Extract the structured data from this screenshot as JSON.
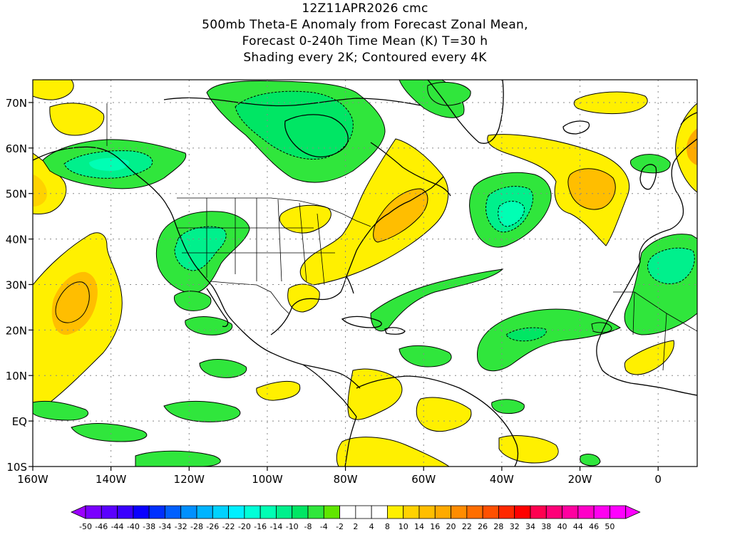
{
  "title": {
    "line1": "12Z11APR2026 cmc",
    "line2": "500mb Theta-E Anomaly from Forecast Zonal Mean,",
    "line3": "Forecast 0-240h Time Mean (K) T=30 h",
    "line4": "Shading every 2K; Contoured every 4K"
  },
  "map": {
    "lon_labels": [
      "160W",
      "140W",
      "120W",
      "100W",
      "80W",
      "60W",
      "40W",
      "20W",
      "0"
    ],
    "lat_labels": [
      "70N",
      "60N",
      "50N",
      "40N",
      "30N",
      "20N",
      "10N",
      "EQ",
      "10S"
    ],
    "lon_values": [
      -160,
      -140,
      -120,
      -100,
      -80,
      -60,
      -40,
      -20,
      0
    ],
    "lat_values": [
      70,
      60,
      50,
      40,
      30,
      20,
      10,
      0,
      -10
    ],
    "extent": {
      "lon_min": -160,
      "lon_max": 10,
      "lat_min": -10,
      "lat_max": 75
    },
    "gridlines": "dotted gray",
    "anomaly_regions": [
      {
        "id": "pac-warm-30n",
        "sign": "warm",
        "level": 8,
        "lon": -148,
        "lat": 25
      },
      {
        "id": "ne-pac-warm",
        "sign": "warm",
        "level": 6,
        "lon": -152,
        "lat": 52
      },
      {
        "id": "alaska-cold",
        "sign": "cold",
        "level": -10,
        "lon": -138,
        "lat": 60
      },
      {
        "id": "hudson-cold",
        "sign": "cold",
        "level": -8,
        "lon": -95,
        "lat": 67
      },
      {
        "id": "sw-us-cold",
        "sign": "cold",
        "level": -12,
        "lon": -115,
        "lat": 36
      },
      {
        "id": "east-us-warm",
        "sign": "warm",
        "level": 10,
        "lon": -70,
        "lat": 45
      },
      {
        "id": "atl-cold-45n",
        "sign": "cold",
        "level": -14,
        "lon": -40,
        "lat": 46
      },
      {
        "id": "ne-atl-warm",
        "sign": "warm",
        "level": 10,
        "lon": -16,
        "lat": 51
      },
      {
        "id": "africa-cold",
        "sign": "cold",
        "level": -12,
        "lon": -3,
        "lat": 32
      },
      {
        "id": "trop-atl-cold",
        "sign": "cold",
        "level": -6,
        "lon": -45,
        "lat": 22
      },
      {
        "id": "carib-warm",
        "sign": "warm",
        "level": 6,
        "lon": -65,
        "lat": 5
      }
    ]
  },
  "colorbar": {
    "labels": [
      "-50",
      "-46",
      "-44",
      "-40",
      "-38",
      "-34",
      "-32",
      "-28",
      "-26",
      "-22",
      "-20",
      "-16",
      "-14",
      "-10",
      "-8",
      "-4",
      "-2",
      "2",
      "4",
      "8",
      "10",
      "14",
      "16",
      "20",
      "22",
      "26",
      "28",
      "32",
      "34",
      "38",
      "40",
      "44",
      "46",
      "50"
    ],
    "colors": [
      "#9b00ff",
      "#7a00ff",
      "#5a00ff",
      "#3a00ff",
      "#0a00ff",
      "#0030ff",
      "#0060ff",
      "#0090ff",
      "#00b4ff",
      "#00d2ff",
      "#00f0ff",
      "#00ffd8",
      "#00ffb4",
      "#00f08c",
      "#00e664",
      "#30e63c",
      "#60e600",
      "#ffffff",
      "#ffffff",
      "#ffffff",
      "#fff000",
      "#ffd200",
      "#ffbe00",
      "#ffaa00",
      "#ff8c00",
      "#ff6e00",
      "#ff5000",
      "#ff2800",
      "#ff0000",
      "#ff0050",
      "#ff0078",
      "#ff00a0",
      "#ff00c8",
      "#ff00f0",
      "#ff00ff"
    ]
  }
}
